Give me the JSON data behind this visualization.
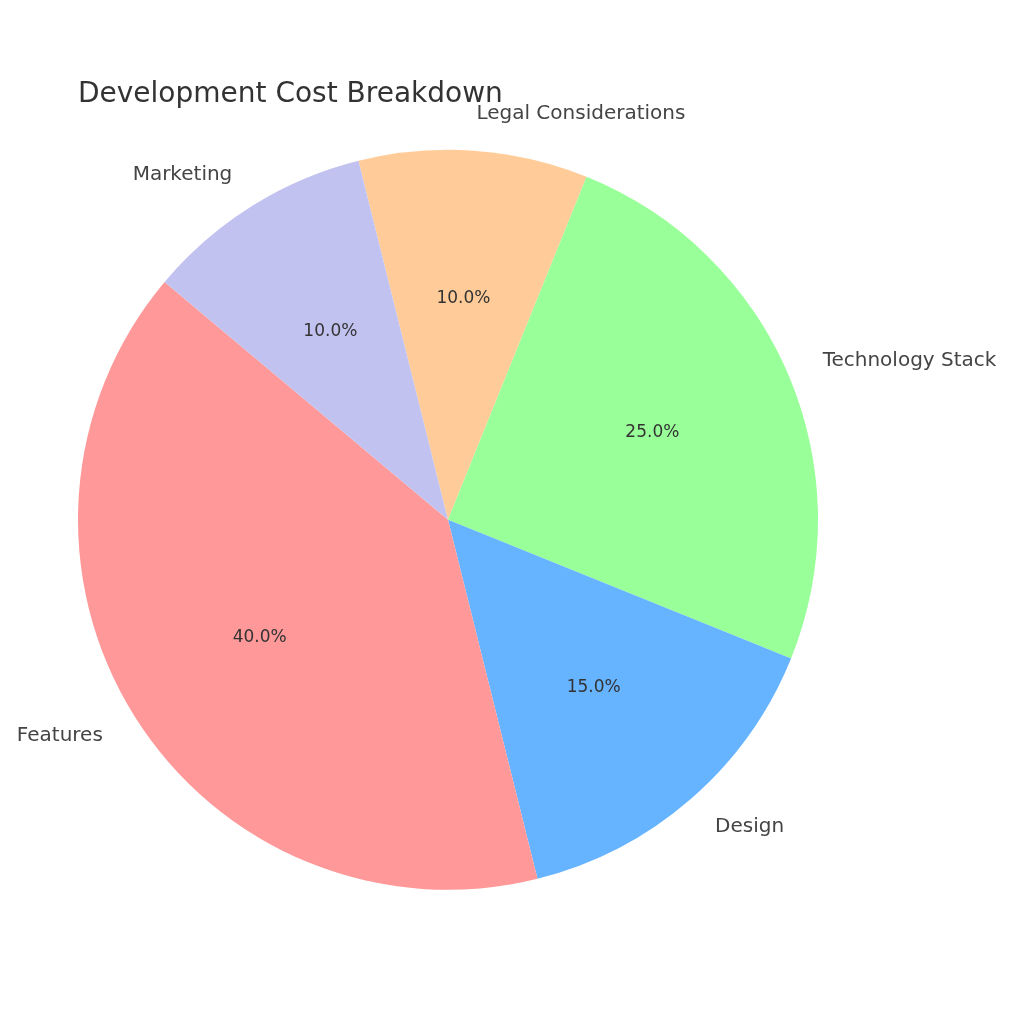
{
  "chart_data": {
    "type": "pie",
    "title": "Development Cost Breakdown",
    "categories": [
      "Legal Considerations",
      "Technology Stack",
      "Design",
      "Features",
      "Marketing"
    ],
    "values": [
      10,
      25,
      15,
      40,
      10
    ],
    "colors": [
      "#ffcc99",
      "#99ff99",
      "#66b3ff",
      "#ff9999",
      "#c2c2f0"
    ],
    "value_labels": [
      "10.0%",
      "25.0%",
      "15.0%",
      "40.0%",
      "10.0%"
    ],
    "legend": false
  }
}
